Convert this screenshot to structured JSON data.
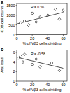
{
  "chart_data": [
    {
      "type": "scatter",
      "title": "a",
      "x_label": "% of Vβ3 cells dividing",
      "y_label": "CD8 cell counts",
      "annotations": [
        "R = 0.56"
      ],
      "x": [
        5,
        10,
        15,
        20,
        25,
        30,
        40,
        50,
        55,
        60
      ],
      "values": [
        600,
        700,
        500,
        1100,
        650,
        900,
        1000,
        1300,
        800,
        1250
      ],
      "fit": {
        "x": [
          0,
          60
        ],
        "values": [
          550,
          1150
        ]
      },
      "xlim": [
        0,
        65
      ],
      "xticks": [
        0,
        20,
        40,
        60
      ],
      "ylim": [
        0,
        1600
      ],
      "yticks": [
        0,
        500,
        1000,
        1500
      ],
      "marker": "diamond",
      "color": "#000000"
    },
    {
      "type": "scatter",
      "title": "b",
      "x_label": "% of Vβ3 cells dividing",
      "y_label": "Viral load",
      "annotations": [
        "R = -0.58"
      ],
      "x": [
        2,
        5,
        8,
        10,
        20,
        25,
        30,
        45,
        55
      ],
      "values": [
        4.8,
        5.2,
        4,
        5.6,
        3.5,
        4.6,
        3,
        3.8,
        2.2
      ],
      "fit": {
        "x": [
          0,
          60
        ],
        "values": [
          5,
          2.7
        ]
      },
      "xlim": [
        0,
        65
      ],
      "xticks": [
        0,
        20,
        40,
        60
      ],
      "ylim": [
        0,
        6.5
      ],
      "yticks": [
        0,
        2,
        4,
        6
      ],
      "marker": "diamond",
      "color": "#000000"
    }
  ]
}
